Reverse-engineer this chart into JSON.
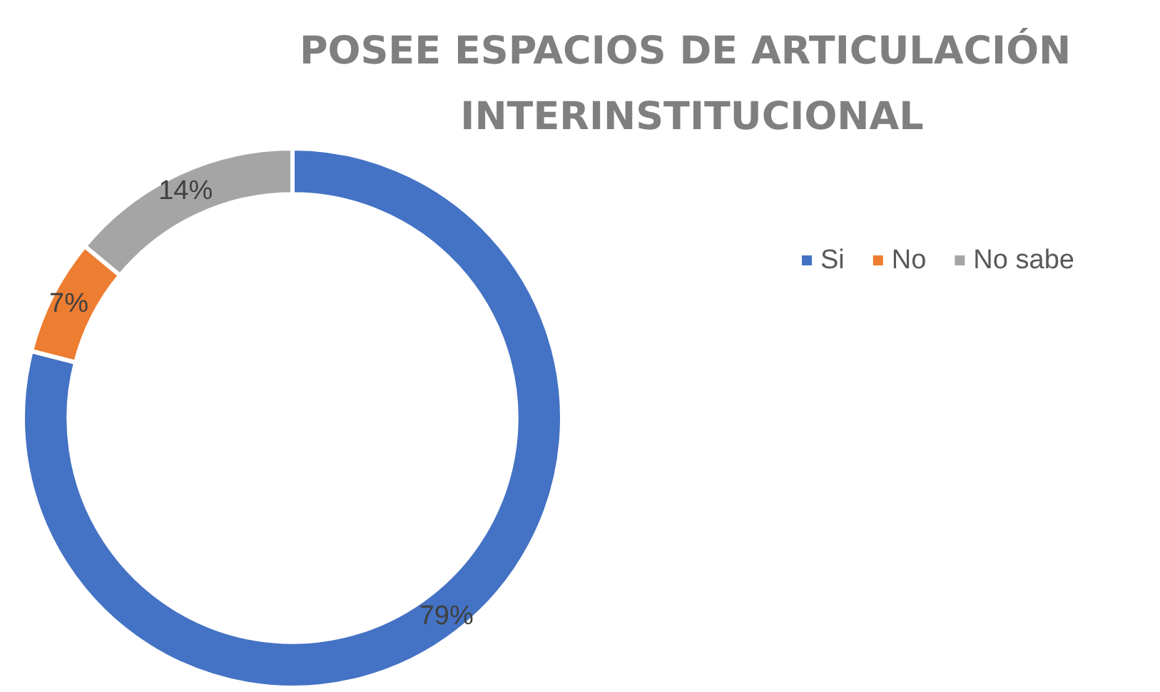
{
  "chart_data": {
    "type": "donut",
    "title": "POSEE ESPACIOS DE ARTICULACIÓN INTERINSTITUCIONAL",
    "categories": [
      "Si",
      "No",
      "No sabe"
    ],
    "values": [
      79,
      7,
      14
    ],
    "colors": [
      "#4472c4",
      "#ed7d31",
      "#a5a5a5"
    ],
    "value_labels": [
      "79%",
      "7%",
      "14%"
    ],
    "legend": "right"
  }
}
